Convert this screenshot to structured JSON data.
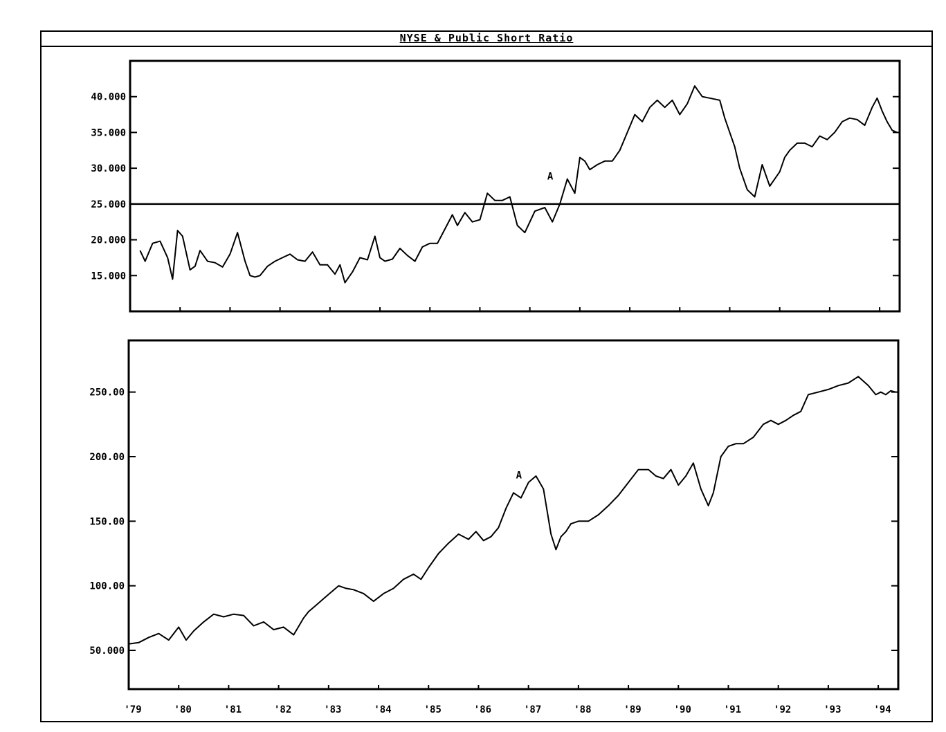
{
  "title": "NYSE & Public Short Ratio",
  "x_tick_labels": [
    "'79",
    "'80",
    "'81",
    "'82",
    "'83",
    "'84",
    "'85",
    "'86",
    "'87",
    "'88",
    "'89",
    "'90",
    "'91",
    "'92",
    "'93",
    "'94"
  ],
  "chart_data": [
    {
      "type": "line",
      "panel": "top",
      "xlim": [
        1979.0,
        1994.4
      ],
      "ylim": [
        10.0,
        45.0
      ],
      "y_ticks": [
        15,
        20,
        25,
        30,
        35,
        40
      ],
      "y_tick_labels": [
        "15.000",
        "20.000",
        "25.000",
        "30.000",
        "35.000",
        "40.000"
      ],
      "reference_line": 25.0,
      "annotation": {
        "text": "A",
        "x": 1987.35,
        "y": 28.4
      },
      "series": [
        {
          "x": [
            1979.2,
            1979.3,
            1979.45,
            1979.6,
            1979.75,
            1979.85,
            1979.95,
            1980.05,
            1980.2,
            1980.3,
            1980.4,
            1980.55,
            1980.7,
            1980.85,
            1981.0,
            1981.15,
            1981.3,
            1981.4,
            1981.5,
            1981.6,
            1981.75,
            1981.9,
            1982.05,
            1982.2,
            1982.35,
            1982.5,
            1982.65,
            1982.8,
            1982.95,
            1983.1,
            1983.2,
            1983.3,
            1983.45,
            1983.6,
            1983.75,
            1983.9,
            1984.0,
            1984.1,
            1984.25,
            1984.4,
            1984.55,
            1984.7,
            1984.85,
            1985.0,
            1985.15,
            1985.3,
            1985.45,
            1985.55,
            1985.7,
            1985.85,
            1986.0,
            1986.15,
            1986.3,
            1986.45,
            1986.6,
            1986.75,
            1986.9,
            1987.1,
            1987.3,
            1987.45,
            1987.6,
            1987.75,
            1987.9,
            1988.0,
            1988.1,
            1988.2,
            1988.35,
            1988.5,
            1988.65,
            1988.8,
            1988.95,
            1989.1,
            1989.25,
            1989.4,
            1989.55,
            1989.7,
            1989.85,
            1990.0,
            1990.15,
            1990.3,
            1990.45,
            1990.6,
            1990.8,
            1990.9,
            1991.0,
            1991.1,
            1991.2,
            1991.35,
            1991.5,
            1991.65,
            1991.8,
            1991.9,
            1992.0,
            1992.1,
            1992.2,
            1992.35,
            1992.5,
            1992.65,
            1992.8,
            1992.95,
            1993.1,
            1993.25,
            1993.4,
            1993.55,
            1993.7,
            1993.85,
            1993.95,
            1994.05,
            1994.15,
            1994.25,
            1994.35
          ],
          "y": [
            18.5,
            17.0,
            19.5,
            19.8,
            17.5,
            14.5,
            21.3,
            20.5,
            15.8,
            16.3,
            18.5,
            17.0,
            16.8,
            16.2,
            18.0,
            21.0,
            17.0,
            15.0,
            14.8,
            15.0,
            16.3,
            17.0,
            17.5,
            18.0,
            17.2,
            17.0,
            18.3,
            16.5,
            16.5,
            15.2,
            16.5,
            14.0,
            15.5,
            17.5,
            17.2,
            20.5,
            17.5,
            17.0,
            17.3,
            18.8,
            17.8,
            17.0,
            19.0,
            19.5,
            19.5,
            21.5,
            23.5,
            22.0,
            23.8,
            22.5,
            22.8,
            26.5,
            25.5,
            25.5,
            26.0,
            22.0,
            21.0,
            24.0,
            24.5,
            22.5,
            25.0,
            28.5,
            26.5,
            31.5,
            31.0,
            29.8,
            30.5,
            31.0,
            31.0,
            32.5,
            35.0,
            37.5,
            36.5,
            38.5,
            39.5,
            38.5,
            39.5,
            37.5,
            39.0,
            41.5,
            40.0,
            39.8,
            39.5,
            37.0,
            35.0,
            33.0,
            30.0,
            27.0,
            26.0,
            30.5,
            27.5,
            28.5,
            29.5,
            31.5,
            32.5,
            33.5,
            33.5,
            33.0,
            34.5,
            34.0,
            35.0,
            36.5,
            37.0,
            36.8,
            36.0,
            38.5,
            39.8,
            38.0,
            36.5,
            35.3,
            35.0
          ]
        }
      ]
    },
    {
      "type": "line",
      "panel": "bottom",
      "xlim": [
        1979.0,
        1994.4
      ],
      "ylim": [
        20.0,
        290.0
      ],
      "y_ticks": [
        50,
        100,
        150,
        200,
        250
      ],
      "y_tick_labels": [
        "50.000",
        "100.00",
        "150.00",
        "200.00",
        "250.00"
      ],
      "annotation": {
        "text": "A",
        "x": 1986.75,
        "y": 183.0
      },
      "series": [
        {
          "x": [
            1979.0,
            1979.2,
            1979.4,
            1979.6,
            1979.8,
            1980.0,
            1980.15,
            1980.3,
            1980.5,
            1980.7,
            1980.9,
            1981.1,
            1981.3,
            1981.5,
            1981.7,
            1981.9,
            1982.1,
            1982.3,
            1982.5,
            1982.6,
            1982.75,
            1982.9,
            1983.05,
            1983.2,
            1983.35,
            1983.5,
            1983.7,
            1983.9,
            1984.1,
            1984.3,
            1984.5,
            1984.7,
            1984.85,
            1985.0,
            1985.2,
            1985.4,
            1985.6,
            1985.8,
            1985.95,
            1986.1,
            1986.25,
            1986.4,
            1986.55,
            1986.7,
            1986.85,
            1987.0,
            1987.15,
            1987.3,
            1987.45,
            1987.55,
            1987.65,
            1987.75,
            1987.85,
            1988.0,
            1988.2,
            1988.4,
            1988.6,
            1988.8,
            1989.0,
            1989.2,
            1989.4,
            1989.55,
            1989.7,
            1989.85,
            1990.0,
            1990.15,
            1990.3,
            1990.45,
            1990.6,
            1990.7,
            1990.85,
            1991.0,
            1991.15,
            1991.3,
            1991.5,
            1991.7,
            1991.85,
            1992.0,
            1992.15,
            1992.3,
            1992.45,
            1992.6,
            1992.8,
            1993.0,
            1993.2,
            1993.4,
            1993.6,
            1993.8,
            1993.95,
            1994.05,
            1994.15,
            1994.25,
            1994.35
          ],
          "y": [
            55,
            56,
            60,
            63,
            58,
            68,
            58,
            65,
            72,
            78,
            76,
            78,
            77,
            69,
            72,
            66,
            68,
            62,
            75,
            80,
            85,
            90,
            95,
            100,
            98,
            97,
            94,
            88,
            94,
            98,
            105,
            109,
            105,
            114,
            125,
            133,
            140,
            136,
            142,
            135,
            138,
            145,
            160,
            172,
            168,
            180,
            185,
            175,
            140,
            128,
            138,
            142,
            148,
            150,
            150,
            155,
            162,
            170,
            180,
            190,
            190,
            185,
            183,
            190,
            178,
            185,
            195,
            175,
            162,
            172,
            200,
            208,
            210,
            210,
            215,
            225,
            228,
            225,
            228,
            232,
            235,
            248,
            250,
            252,
            255,
            257,
            262,
            255,
            248,
            250,
            248,
            251,
            250
          ]
        }
      ]
    }
  ]
}
